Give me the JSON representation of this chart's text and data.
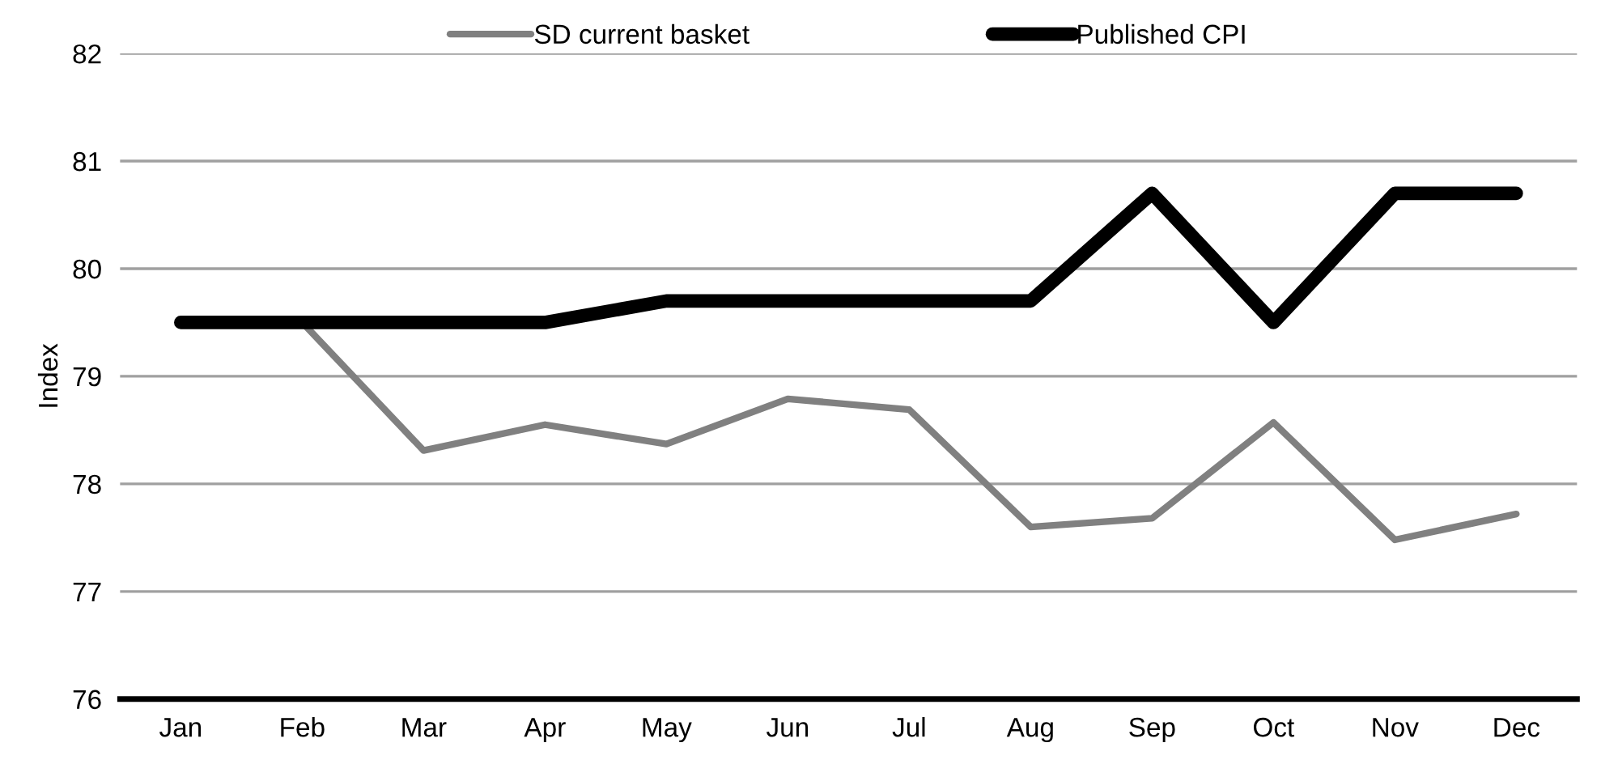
{
  "chart_data": {
    "type": "line",
    "ylabel": "Index",
    "categories": [
      "Jan",
      "Feb",
      "Mar",
      "Apr",
      "May",
      "Jun",
      "Jul",
      "Aug",
      "Sep",
      "Oct",
      "Nov",
      "Dec"
    ],
    "series": [
      {
        "name": "SD current basket",
        "color": "#808080",
        "values": [
          79.5,
          79.5,
          78.31,
          78.55,
          78.37,
          78.79,
          78.69,
          77.6,
          77.68,
          78.57,
          77.48,
          77.72
        ]
      },
      {
        "name": "Published CPI",
        "color": "#000000",
        "values": [
          79.5,
          79.5,
          79.5,
          79.5,
          79.7,
          79.7,
          79.7,
          79.7,
          80.7,
          79.5,
          80.7,
          80.7
        ]
      }
    ],
    "ylim": [
      76,
      82
    ],
    "yticks": [
      76,
      77,
      78,
      79,
      80,
      81,
      82
    ],
    "grid": "y",
    "legend": "top",
    "marker": "none",
    "line_style": "solid"
  }
}
